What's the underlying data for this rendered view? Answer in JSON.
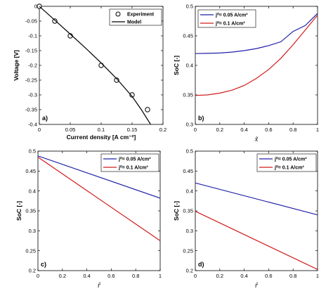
{
  "figure": {
    "colors": {
      "axis": "#000000",
      "blue": "#1f1fa8",
      "red": "#d01c1c",
      "model": "#000000"
    }
  },
  "chart_data": [
    {
      "id": "a",
      "panel_label": "a)",
      "type": "scatter",
      "xlabel": "Current density [A cm⁻²]",
      "ylabel": "Voltage [V]",
      "xlim": [
        0,
        0.2
      ],
      "ylim": [
        -0.4,
        0
      ],
      "xticks": [
        0,
        0.05,
        0.1,
        0.15,
        0.2
      ],
      "xtick_labels": [
        "0",
        "0.05",
        "0.1",
        "0.15",
        "0.2"
      ],
      "yticks": [
        0,
        -0.05,
        -0.1,
        -0.15,
        -0.2,
        -0.25,
        -0.3,
        -0.35,
        -0.4
      ],
      "ytick_labels": [
        "0",
        "-0.05",
        "-0.1",
        "-0.15",
        "-0.2",
        "-0.25",
        "-0.3",
        "-0.35",
        "-0.4"
      ],
      "legend_position": "top-right",
      "series": [
        {
          "name": "Experiment",
          "kind": "markers",
          "color": "#000000",
          "x": [
            0,
            0.025,
            0.05,
            0.1,
            0.125,
            0.15,
            0.175
          ],
          "y": [
            0,
            -0.05,
            -0.1,
            -0.2,
            -0.25,
            -0.3,
            -0.35
          ]
        },
        {
          "name": "Model",
          "kind": "line",
          "color": "#000000",
          "x": [
            0,
            0.025,
            0.05,
            0.075,
            0.1,
            0.125,
            0.15,
            0.165,
            0.18
          ],
          "y": [
            0,
            -0.047,
            -0.094,
            -0.142,
            -0.192,
            -0.245,
            -0.305,
            -0.35,
            -0.4
          ]
        }
      ]
    },
    {
      "id": "b",
      "panel_label": "b)",
      "type": "line",
      "xlabel": "x̃",
      "ylabel": "SoC [-]",
      "xlim": [
        0,
        1
      ],
      "ylim": [
        0.3,
        0.5
      ],
      "xticks": [
        0,
        0.2,
        0.4,
        0.6,
        0.8,
        1
      ],
      "xtick_labels": [
        "0",
        "0.2",
        "0.4",
        "0.6",
        "0.8",
        "1"
      ],
      "yticks": [
        0.3,
        0.35,
        0.4,
        0.45,
        0.5
      ],
      "ytick_labels": [
        "0.3",
        "0.35",
        "0.4",
        "0.45",
        "0.5"
      ],
      "legend_position": "top-left",
      "series": [
        {
          "name": "j⁰= 0.05 A/cm²",
          "color": "#1f1fa8",
          "x": [
            0,
            0.1,
            0.2,
            0.3,
            0.4,
            0.5,
            0.6,
            0.7,
            0.8,
            0.9,
            1
          ],
          "y": [
            0.42,
            0.4203,
            0.421,
            0.4225,
            0.425,
            0.4285,
            0.4335,
            0.44,
            0.4575,
            0.4675,
            0.488
          ]
        },
        {
          "name": "j⁰= 0.1 A/cm²",
          "color": "#d01c1c",
          "x": [
            0,
            0.1,
            0.2,
            0.3,
            0.4,
            0.5,
            0.6,
            0.7,
            0.8,
            0.9,
            1
          ],
          "y": [
            0.349,
            0.35,
            0.353,
            0.358,
            0.366,
            0.378,
            0.393,
            0.412,
            0.435,
            0.46,
            0.485
          ]
        }
      ]
    },
    {
      "id": "c",
      "panel_label": "c)",
      "type": "line",
      "xlabel": "r̃",
      "ylabel": "SoC [-]",
      "xlim": [
        0,
        1
      ],
      "ylim": [
        0.2,
        0.5
      ],
      "xticks": [
        0,
        0.2,
        0.4,
        0.6,
        0.8,
        1
      ],
      "xtick_labels": [
        "0",
        "0.2",
        "0.4",
        "0.6",
        "0.8",
        "1"
      ],
      "yticks": [
        0.2,
        0.25,
        0.3,
        0.35,
        0.4,
        0.45,
        0.5
      ],
      "ytick_labels": [
        "0.2",
        "0.25",
        "0.3",
        "0.35",
        "0.4",
        "0.45",
        "0.5"
      ],
      "legend_position": "top-right",
      "series": [
        {
          "name": "j⁰= 0.05 A/cm²",
          "color": "#1f1fa8",
          "x": [
            0,
            1
          ],
          "y": [
            0.488,
            0.382
          ]
        },
        {
          "name": "j⁰= 0.1 A/cm²",
          "color": "#d01c1c",
          "x": [
            0,
            1
          ],
          "y": [
            0.485,
            0.275
          ]
        }
      ]
    },
    {
      "id": "d",
      "panel_label": "d)",
      "type": "line",
      "xlabel": "r̃",
      "ylabel": "SoC [-]",
      "xlim": [
        0,
        1
      ],
      "ylim": [
        0.2,
        0.5
      ],
      "xticks": [
        0,
        0.2,
        0.4,
        0.6,
        0.8,
        1
      ],
      "xtick_labels": [
        "0",
        "0.2",
        "0.4",
        "0.6",
        "0.8",
        "1"
      ],
      "yticks": [
        0.2,
        0.25,
        0.3,
        0.35,
        0.4,
        0.45,
        0.5
      ],
      "ytick_labels": [
        "0.2",
        "0.25",
        "0.3",
        "0.35",
        "0.4",
        "0.45",
        "0.5"
      ],
      "legend_position": "top-right",
      "series": [
        {
          "name": "j⁰= 0.05 A/cm²",
          "color": "#1f1fa8",
          "x": [
            0,
            1
          ],
          "y": [
            0.42,
            0.34
          ]
        },
        {
          "name": "j⁰= 0.1 A/cm²",
          "color": "#d01c1c",
          "x": [
            0,
            1
          ],
          "y": [
            0.349,
            0.203
          ]
        }
      ]
    }
  ]
}
